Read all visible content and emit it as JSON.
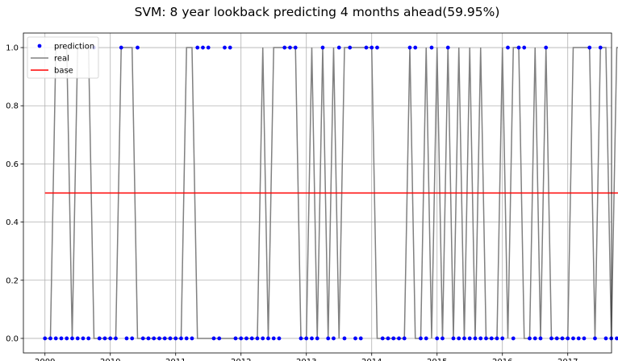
{
  "chart_data": {
    "type": "line",
    "title": "SVM: 8 year lookback predicting 4 months ahead(59.95%)",
    "xlabel": "",
    "ylabel": "",
    "xlim": [
      2008.67,
      2017.67
    ],
    "ylim": [
      -0.05,
      1.05
    ],
    "x_ticks": [
      "2009",
      "2010",
      "2011",
      "2012",
      "2013",
      "2014",
      "2015",
      "2016",
      "2017"
    ],
    "y_ticks": [
      "0.0",
      "0.2",
      "0.4",
      "0.6",
      "0.8",
      "1.0"
    ],
    "grid": true,
    "legend_position": "top-left",
    "x_start_month": "2009-01",
    "x_end_month": "2017-05",
    "series": [
      {
        "name": "prediction",
        "style": "points",
        "color": "#0000ff",
        "values": [
          0,
          0,
          0,
          0,
          0,
          0,
          0,
          0,
          0,
          1,
          0,
          0,
          0,
          0,
          1,
          0,
          0,
          1,
          0,
          0,
          0,
          0,
          0,
          0,
          0,
          0,
          0,
          0,
          1,
          1,
          1,
          0,
          0,
          1,
          1,
          0,
          0,
          0,
          0,
          0,
          0,
          0,
          0,
          0,
          1,
          1,
          1,
          0,
          0,
          0,
          0,
          1,
          0,
          0,
          1,
          0,
          1,
          0,
          0,
          1,
          1,
          1,
          0,
          0,
          0,
          0,
          0,
          1,
          1,
          0,
          0,
          1,
          0,
          0,
          1,
          0,
          0,
          0,
          0,
          0,
          0,
          0,
          0,
          0,
          0,
          1,
          0,
          1,
          1,
          0,
          0,
          0,
          1,
          0,
          0,
          0,
          0,
          0,
          0,
          0,
          1,
          0,
          1,
          0,
          0,
          0,
          0,
          1,
          0,
          0,
          1,
          0,
          1,
          1
        ]
      },
      {
        "name": "real",
        "style": "line",
        "color": "#808080",
        "values": [
          0,
          0,
          1,
          1,
          1,
          0,
          1,
          1,
          1,
          0,
          0,
          0,
          0,
          0,
          1,
          1,
          1,
          0,
          0,
          0,
          0,
          0,
          0,
          0,
          0,
          0,
          1,
          1,
          0,
          0,
          0,
          0,
          0,
          0,
          0,
          0,
          0,
          0,
          0,
          0,
          1,
          0,
          1,
          1,
          1,
          1,
          1,
          0,
          0,
          1,
          0,
          1,
          0,
          1,
          0,
          1,
          1,
          1,
          1,
          1,
          1,
          0,
          0,
          0,
          0,
          0,
          0,
          1,
          0,
          0,
          1,
          0,
          1,
          0,
          1,
          0,
          1,
          0,
          1,
          0,
          1,
          0,
          0,
          0,
          1,
          0,
          1,
          1,
          0,
          0,
          1,
          0,
          1,
          0,
          0,
          0,
          0,
          1,
          1,
          1,
          1,
          0,
          1,
          1,
          0,
          1,
          1,
          1,
          0,
          1,
          0,
          0,
          0,
          0
        ]
      },
      {
        "name": "base",
        "style": "line",
        "color": "#ff0000",
        "values": [
          0.5,
          0.5
        ]
      }
    ]
  }
}
